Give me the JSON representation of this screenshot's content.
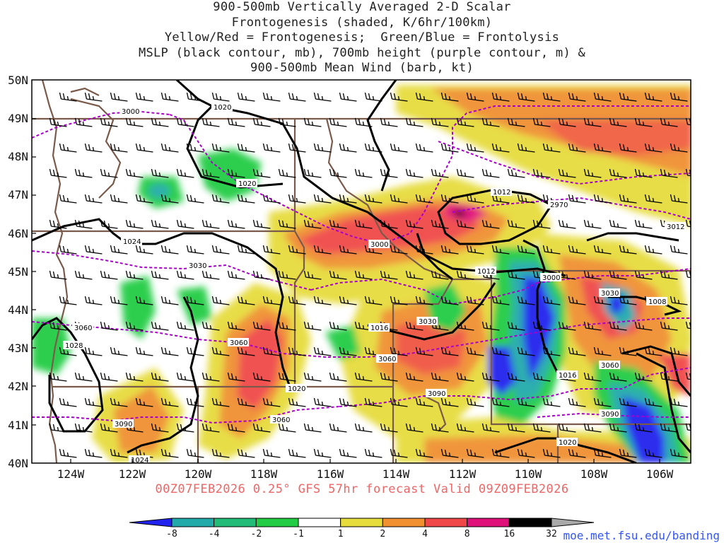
{
  "title_lines": [
    "900-500mb Vertically Averaged 2-D Scalar",
    "Frontogenesis (shaded, K/6hr/100km)",
    "Yellow/Red = Frontogenesis;  Green/Blue = Frontolysis",
    "MSLP (black contour, mb), 700mb height (purple contour, m) &",
    "900-500mb Mean Wind (barb, kt)"
  ],
  "map": {
    "lon_range": [
      -125,
      -105
    ],
    "lat_range": [
      40,
      50
    ],
    "lat_ticks": [
      "50N",
      "49N",
      "48N",
      "47N",
      "46N",
      "45N",
      "44N",
      "43N",
      "42N",
      "41N",
      "40N"
    ],
    "lon_ticks": [
      "124W",
      "122W",
      "120W",
      "118W",
      "116W",
      "114W",
      "112W",
      "110W",
      "108W",
      "106W"
    ],
    "mslp_labels": [
      "1020",
      "1020",
      "1024",
      "1012",
      "1012",
      "1016",
      "1028",
      "1020",
      "1016",
      "1020",
      "1024",
      "1008"
    ],
    "height_labels": [
      "3000",
      "2970",
      "3012",
      "3000",
      "3030",
      "3000",
      "3030",
      "3060",
      "3060",
      "3030",
      "3060",
      "3090",
      "3060",
      "3090",
      "3090",
      "3060"
    ],
    "colors": {
      "mslp": "#000000",
      "height": "#aa00cc",
      "borders": "#7a5a4a",
      "barbs": "#000000"
    }
  },
  "valid_text": "00Z07FEB2026 0.25° GFS 57hr forecast Valid 09Z09FEB2026",
  "colorbar": {
    "labels": [
      "-8",
      "-4",
      "-2",
      "-1",
      "1",
      "2",
      "4",
      "8",
      "16",
      "32"
    ],
    "colors": [
      "#2222ee",
      "#22aaaa",
      "#22bb77",
      "#22cc44",
      "#ffffff",
      "#e6dc3c",
      "#f09030",
      "#f04848",
      "#e0107a",
      "#000000",
      "#aaaaaa"
    ]
  },
  "credit": "moe.met.fsu.edu/banding"
}
